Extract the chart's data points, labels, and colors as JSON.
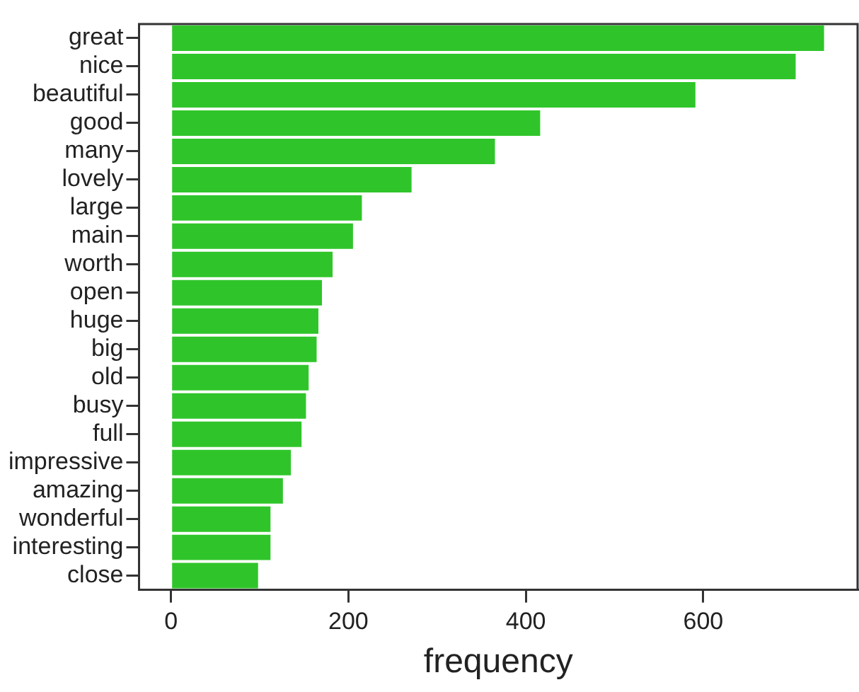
{
  "chart_data": {
    "type": "bar",
    "orientation": "horizontal",
    "xlabel": "frequency",
    "categories": [
      "great",
      "nice",
      "beautiful",
      "good",
      "many",
      "lovely",
      "large",
      "main",
      "worth",
      "open",
      "huge",
      "big",
      "old",
      "busy",
      "full",
      "impressive",
      "amazing",
      "wonderful",
      "interesting",
      "close"
    ],
    "values": [
      737,
      705,
      592,
      417,
      366,
      272,
      216,
      206,
      183,
      171,
      167,
      165,
      156,
      153,
      148,
      136,
      127,
      113,
      113,
      99
    ],
    "color": "#2fc52a",
    "xlim": [
      -36,
      774
    ],
    "xticks": [
      0,
      200,
      400,
      600
    ],
    "grid": false,
    "legend": false
  }
}
